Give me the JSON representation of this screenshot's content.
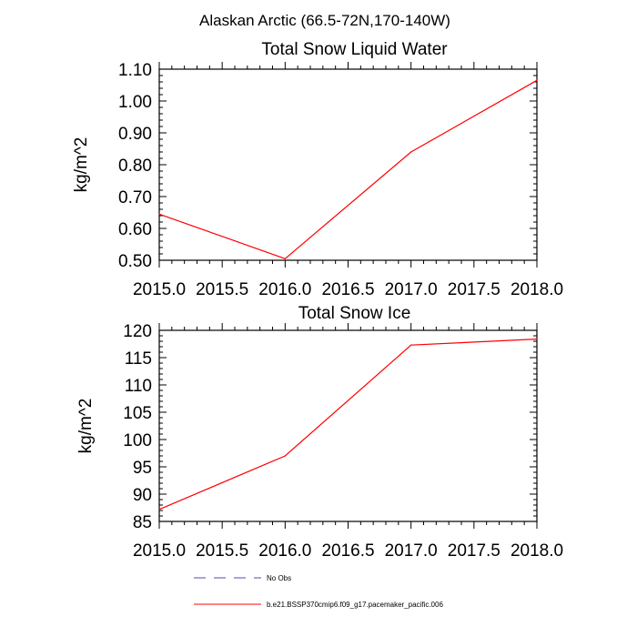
{
  "figure_title": "Alaskan Arctic (66.5-72N,170-140W)",
  "colors": {
    "series": "#ff0000",
    "obs": "#4b4bb4",
    "axis": "#000000"
  },
  "legend": [
    {
      "label": "No Obs",
      "style": "dashed",
      "color": "#4b4bb4"
    },
    {
      "label": "b.e21.BSSP370cmip6.f09_g17.pacemaker_pacific.006",
      "style": "solid",
      "color": "#ff0000"
    }
  ],
  "chart_data": [
    {
      "type": "line",
      "title": "Total Snow Liquid Water",
      "xlabel": "",
      "ylabel": "kg/m^2",
      "xlim": [
        2015.0,
        2018.0
      ],
      "ylim": [
        0.5,
        1.1
      ],
      "x_ticks": [
        "2015.0",
        "2015.5",
        "2016.0",
        "2016.5",
        "2017.0",
        "2017.5",
        "2018.0"
      ],
      "y_ticks": [
        "0.50",
        "0.60",
        "0.70",
        "0.80",
        "0.90",
        "1.00",
        "1.10"
      ],
      "grid": false,
      "series": [
        {
          "name": "b.e21.BSSP370cmip6.f09_g17.pacemaker_pacific.006",
          "x": [
            2015,
            2016,
            2017,
            2018
          ],
          "values": [
            0.645,
            0.505,
            0.84,
            1.065
          ]
        }
      ]
    },
    {
      "type": "line",
      "title": "Total Snow Ice",
      "xlabel": "",
      "ylabel": "kg/m^2",
      "xlim": [
        2015.0,
        2018.0
      ],
      "ylim": [
        85,
        120
      ],
      "x_ticks": [
        "2015.0",
        "2015.5",
        "2016.0",
        "2016.5",
        "2017.0",
        "2017.5",
        "2018.0"
      ],
      "y_ticks": [
        "85",
        "90",
        "95",
        "100",
        "105",
        "110",
        "115",
        "120"
      ],
      "grid": false,
      "series": [
        {
          "name": "b.e21.BSSP370cmip6.f09_g17.pacemaker_pacific.006",
          "x": [
            2015,
            2016,
            2017,
            2018
          ],
          "values": [
            87.2,
            97.0,
            117.3,
            118.4
          ]
        }
      ]
    }
  ]
}
